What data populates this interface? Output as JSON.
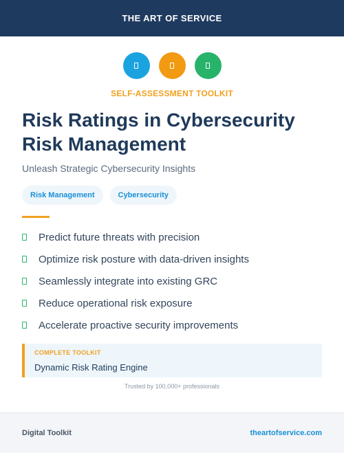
{
  "header": {
    "title": "THE ART OF SERVICE"
  },
  "icons": [
    {
      "name": "shield-icon",
      "color": "#1ba3e0"
    },
    {
      "name": "chart-icon",
      "color": "#f29a12"
    },
    {
      "name": "lock-icon",
      "color": "#27b36a"
    }
  ],
  "kicker": "SELF-ASSESSMENT TOOLKIT",
  "title": "Risk Ratings in Cybersecurity Risk Management",
  "subtitle": "Unleash Strategic Cybersecurity Insights",
  "tags": [
    "Risk Management",
    "Cybersecurity"
  ],
  "features": [
    "Predict future threats with precision",
    "Optimize risk posture with data-driven insights",
    "Seamlessly integrate into existing GRC",
    "Reduce operational risk exposure",
    "Accelerate proactive security improvements"
  ],
  "callout": {
    "label": "COMPLETE TOOLKIT",
    "text": "Dynamic Risk Rating Engine"
  },
  "trust": "Trusted by 100,000+ professionals",
  "footer": {
    "left": "Digital Toolkit",
    "right": "theartofservice.com"
  },
  "colors": {
    "navy": "#1f3a5f",
    "accent": "#f0a020",
    "link": "#1a8fd6",
    "check": "#27b36a"
  }
}
